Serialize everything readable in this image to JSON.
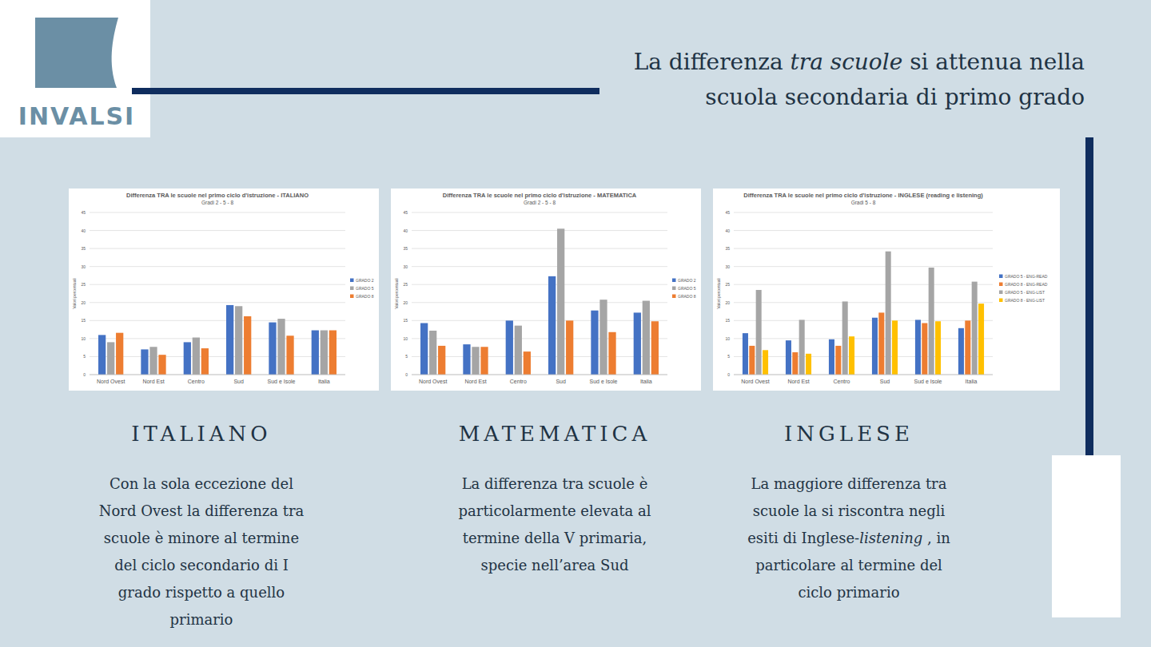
{
  "logo": "INVALSI",
  "title": [
    [
      "La differenza ",
      "tra scuole",
      " si attenua nella"
    ],
    [
      "scuola secondaria di primo grado"
    ]
  ],
  "chart_data": [
    {
      "type": "bar",
      "title": "Differenza TRA le scuole nel primo ciclo d'istruzione - ITALIANO",
      "subtitle": "Gradi 2 - 5 - 8",
      "y_label": "Valori percentuali",
      "categories": [
        "Nord Ovest",
        "Nord Est",
        "Centro",
        "Sud",
        "Sud e Isole",
        "Italia"
      ],
      "series": [
        {
          "name": "GRADO 2",
          "color": "#4472c4",
          "values": [
            11,
            7,
            9,
            19.3,
            14.5,
            12.3
          ]
        },
        {
          "name": "GRADO 5",
          "color": "#a5a5a5",
          "values": [
            9,
            7.7,
            10.3,
            19,
            15.5,
            12.3
          ]
        },
        {
          "name": "GRADO 8",
          "color": "#ed7d31",
          "values": [
            11.6,
            5.5,
            7.3,
            16.2,
            10.8,
            12.3
          ]
        }
      ],
      "ylim": [
        0,
        45
      ],
      "yticks": [
        0,
        5,
        10,
        15,
        20,
        25,
        30,
        35,
        40,
        45
      ],
      "grid": true,
      "legend": "right"
    },
    {
      "type": "bar",
      "title": "Differenza TRA le scuole nel primo ciclo d'istruzione - MATEMATICA",
      "subtitle": "Gradi 2 - 5 - 8",
      "y_label": "Valori percentuali",
      "categories": [
        "Nord Ovest",
        "Nord Est",
        "Centro",
        "Sud",
        "Sud e Isole",
        "Italia"
      ],
      "series": [
        {
          "name": "GRADO 2",
          "color": "#4472c4",
          "values": [
            14.3,
            8.4,
            15,
            27.3,
            17.8,
            17.2
          ]
        },
        {
          "name": "GRADO 5",
          "color": "#a5a5a5",
          "values": [
            12.2,
            7.7,
            13.6,
            40.5,
            20.8,
            20.5
          ]
        },
        {
          "name": "GRADO 8",
          "color": "#ed7d31",
          "values": [
            8,
            7.7,
            6.4,
            15,
            11.8,
            14.8
          ]
        }
      ],
      "ylim": [
        0,
        45
      ],
      "yticks": [
        0,
        5,
        10,
        15,
        20,
        25,
        30,
        35,
        40,
        45
      ],
      "grid": true,
      "legend": "right"
    },
    {
      "type": "bar",
      "title": "Differenza TRA le scuole nel primo ciclo d'istruzione - INGLESE (reading e listening)",
      "subtitle": "Gradi 5 - 8",
      "y_label": "Valori percentuali",
      "categories": [
        "Nord Ovest",
        "Nord Est",
        "Centro",
        "Sud",
        "Sud e Isole",
        "Italia"
      ],
      "series": [
        {
          "name": "GRADO 5 - ENG-READ",
          "color": "#4472c4",
          "values": [
            11.5,
            9.5,
            9.8,
            15.8,
            15.2,
            12.9
          ]
        },
        {
          "name": "GRADO 8 - ENG-READ",
          "color": "#ed7d31",
          "values": [
            8,
            6.2,
            8,
            17.2,
            14.3,
            15
          ]
        },
        {
          "name": "GRADO 5 - ENG-LIST",
          "color": "#a5a5a5",
          "values": [
            23.5,
            15.2,
            20.3,
            34.2,
            29.7,
            25.8
          ]
        },
        {
          "name": "GRADO 8 - ENG-LIST",
          "color": "#ffc000",
          "values": [
            6.8,
            5.8,
            10.6,
            15,
            14.8,
            19.7
          ]
        }
      ],
      "ylim": [
        0,
        45
      ],
      "yticks": [
        0,
        5,
        10,
        15,
        20,
        25,
        30,
        35,
        40,
        45
      ],
      "grid": true,
      "legend": "right"
    }
  ],
  "panels": [
    {
      "heading": "ITALIANO",
      "lines": [
        [
          "Con la sola eccezione del"
        ],
        [
          "Nord Ovest la differenza tra"
        ],
        [
          "scuole è minore al termine"
        ],
        [
          "del ciclo secondario di I"
        ],
        [
          "grado rispetto a quello"
        ],
        [
          "primario"
        ]
      ]
    },
    {
      "heading": "MATEMATICA",
      "lines": [
        [
          "La differenza tra scuole è"
        ],
        [
          "particolarmente elevata al"
        ],
        [
          "termine della V primaria,"
        ],
        [
          "specie nell’area Sud"
        ]
      ]
    },
    {
      "heading": "INGLESE",
      "lines": [
        [
          "La maggiore differenza tra"
        ],
        [
          "scuole la si riscontra negli"
        ],
        [
          "esiti di Inglese-",
          "listening",
          " , in"
        ],
        [
          "particolare al termine del"
        ],
        [
          "ciclo primario"
        ]
      ]
    }
  ]
}
